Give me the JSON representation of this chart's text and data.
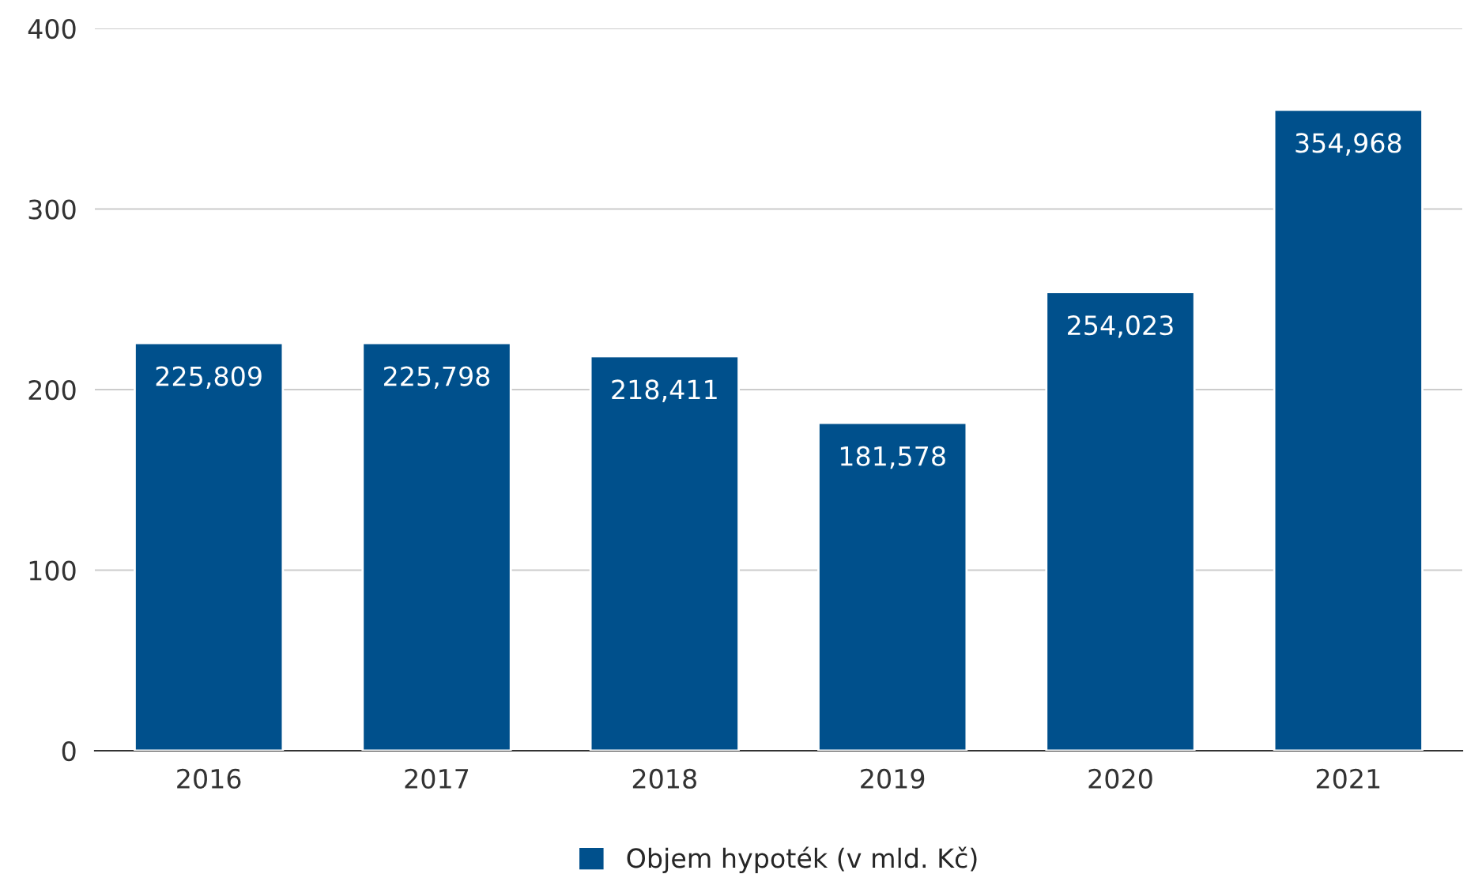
{
  "chart_data": {
    "type": "bar",
    "categories": [
      "2016",
      "2017",
      "2018",
      "2019",
      "2020",
      "2021"
    ],
    "series": [
      {
        "name": "Objem hypoték (v mld. Kč)",
        "color": "#00508c",
        "values": [
          225.809,
          225.798,
          218.411,
          181.578,
          254.023,
          354.968
        ]
      }
    ],
    "value_labels": [
      "225,809",
      "225,798",
      "218,411",
      "181,578",
      "254,023",
      "354,968"
    ],
    "ylim": [
      0,
      400
    ],
    "yticks": [
      0,
      100,
      200,
      300,
      400
    ],
    "grid": "y",
    "legend": "bottom"
  }
}
